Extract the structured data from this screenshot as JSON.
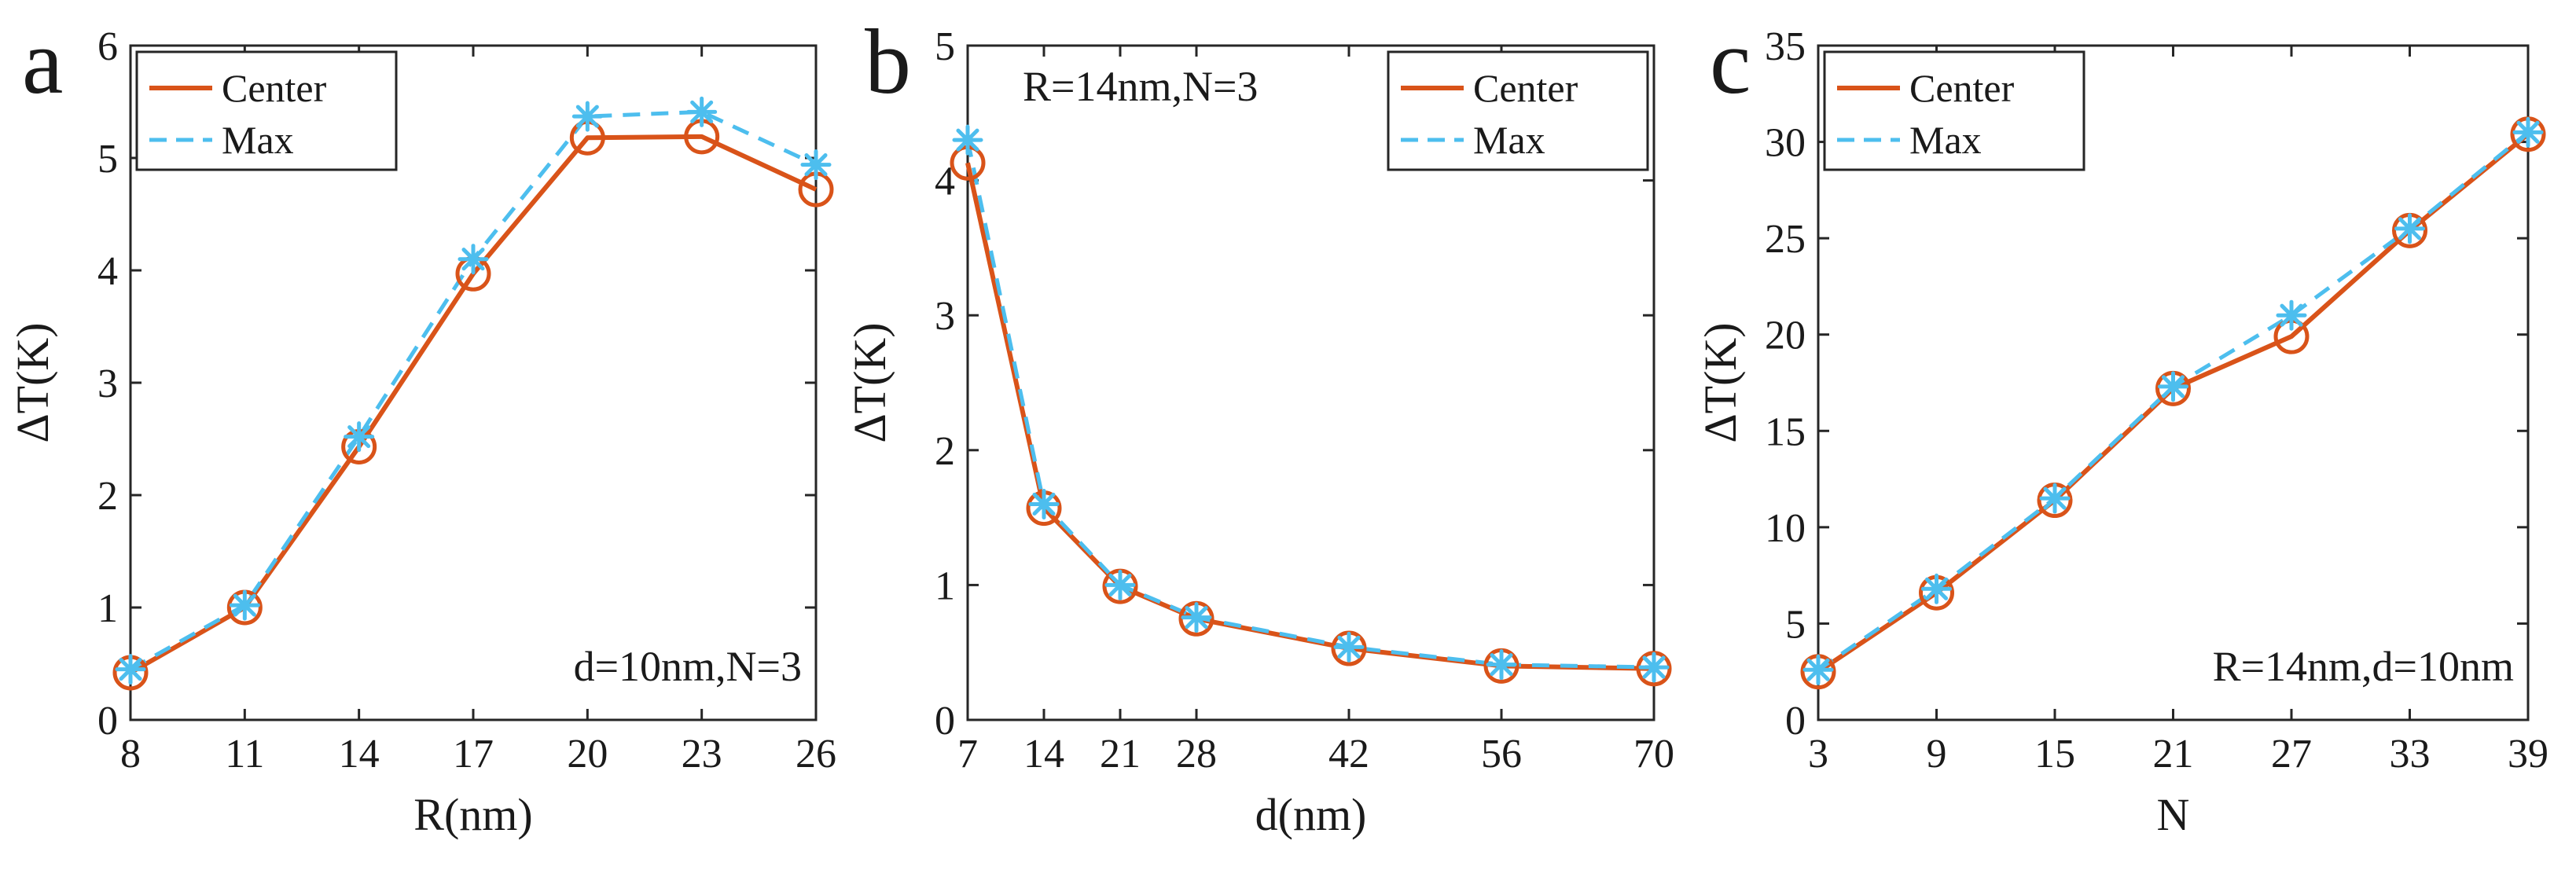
{
  "colors": {
    "center": "#d95319",
    "max": "#4dbeee",
    "axis": "#262626"
  },
  "chart_data": [
    {
      "type": "line",
      "panel_label": "a",
      "xlabel": "R(nm)",
      "ylabel": "ΔT(K)",
      "x": [
        8,
        11,
        14,
        17,
        20,
        23,
        26
      ],
      "xticks": [
        8,
        11,
        14,
        17,
        20,
        23,
        26
      ],
      "xlim": [
        8,
        26
      ],
      "ylim": [
        0,
        6
      ],
      "yticks": [
        0,
        1,
        2,
        3,
        4,
        5,
        6
      ],
      "series": [
        {
          "name": "Center",
          "style": "solid",
          "marker": "circle",
          "values": [
            0.42,
            1.0,
            2.43,
            3.97,
            5.18,
            5.19,
            4.72
          ]
        },
        {
          "name": "Max",
          "style": "dashed",
          "marker": "asterisk",
          "values": [
            0.45,
            1.02,
            2.52,
            4.1,
            5.37,
            5.41,
            4.94
          ]
        }
      ],
      "legend": {
        "labels": [
          "Center",
          "Max"
        ],
        "position": "top-left"
      },
      "annotation": {
        "text": "d=10nm,N=3",
        "position": "bottom-right"
      }
    },
    {
      "type": "line",
      "panel_label": "b",
      "xlabel": "d(nm)",
      "ylabel": "ΔT(K)",
      "x": [
        7,
        14,
        21,
        28,
        42,
        56,
        70
      ],
      "xticks": [
        7,
        14,
        21,
        28,
        42,
        56,
        70
      ],
      "xlim": [
        7,
        70
      ],
      "ylim": [
        0,
        5
      ],
      "yticks": [
        0,
        1,
        2,
        3,
        4,
        5
      ],
      "series": [
        {
          "name": "Center",
          "style": "solid",
          "marker": "circle",
          "values": [
            4.13,
            1.57,
            0.99,
            0.75,
            0.53,
            0.4,
            0.38
          ]
        },
        {
          "name": "Max",
          "style": "dashed",
          "marker": "asterisk",
          "values": [
            4.3,
            1.6,
            1.0,
            0.76,
            0.54,
            0.41,
            0.39
          ]
        }
      ],
      "legend": {
        "labels": [
          "Center",
          "Max"
        ],
        "position": "top-right"
      },
      "annotation": {
        "text": "R=14nm,N=3",
        "position": "top-left"
      }
    },
    {
      "type": "line",
      "panel_label": "c",
      "xlabel": "N",
      "ylabel": "ΔT(K)",
      "x": [
        3,
        9,
        15,
        21,
        27,
        33,
        39
      ],
      "xticks": [
        3,
        9,
        15,
        21,
        27,
        33,
        39
      ],
      "xlim": [
        3,
        39
      ],
      "ylim": [
        0,
        35
      ],
      "yticks": [
        0,
        5,
        10,
        15,
        20,
        25,
        30,
        35
      ],
      "series": [
        {
          "name": "Center",
          "style": "solid",
          "marker": "circle",
          "values": [
            2.5,
            6.6,
            11.4,
            17.2,
            19.9,
            25.4,
            30.4
          ]
        },
        {
          "name": "Max",
          "style": "dashed",
          "marker": "asterisk",
          "values": [
            2.6,
            6.8,
            11.5,
            17.3,
            21.0,
            25.5,
            30.5
          ]
        }
      ],
      "legend": {
        "labels": [
          "Center",
          "Max"
        ],
        "position": "top-left"
      },
      "annotation": {
        "text": "R=14nm,d=10nm",
        "position": "bottom-right"
      }
    }
  ]
}
